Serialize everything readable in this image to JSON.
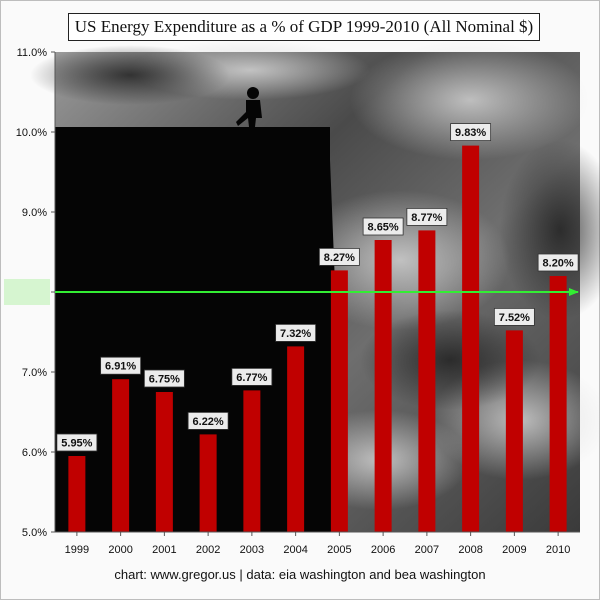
{
  "title": "US Energy Expenditure as a % of GDP 1999-2010 (All Nominal $)",
  "footer": "chart:  www.gregor.us   |   data: eia washington and bea washington",
  "colors": {
    "bar": "#c00000",
    "target_line": "#33ee33",
    "target_label_bg": "#d6f5d0"
  },
  "chart_data": {
    "type": "bar",
    "title": "US Energy Expenditure as a % of GDP 1999-2010 (All Nominal $)",
    "categories": [
      "1999",
      "2000",
      "2001",
      "2002",
      "2003",
      "2004",
      "2005",
      "2006",
      "2007",
      "2008",
      "2009",
      "2010"
    ],
    "values": [
      5.95,
      6.91,
      6.75,
      6.22,
      6.77,
      7.32,
      8.27,
      8.65,
      8.77,
      9.83,
      7.52,
      8.2
    ],
    "data_labels": [
      "5.95%",
      "6.91%",
      "6.75%",
      "6.22%",
      "6.77%",
      "7.32%",
      "8.27%",
      "8.65%",
      "8.77%",
      "9.83%",
      "7.52%",
      "8.20%"
    ],
    "ylim": [
      5.0,
      11.0
    ],
    "yticks": [
      5.0,
      6.0,
      7.0,
      8.0,
      9.0,
      10.0,
      11.0
    ],
    "ytick_labels": [
      "5.0%",
      "6.0%",
      "7.0%",
      "8.0%",
      "9.0%",
      "10.0%",
      "11.0%"
    ],
    "reference_line": {
      "value": 8.0,
      "label": "8.0%"
    },
    "grid": false,
    "xlabel": "",
    "ylabel": ""
  }
}
